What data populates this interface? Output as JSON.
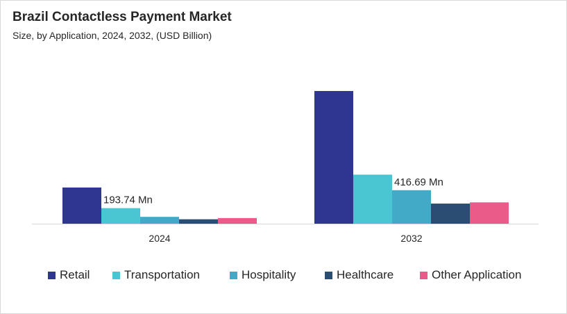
{
  "chart_data": {
    "type": "bar",
    "title": "Brazil Contactless Payment Market",
    "subtitle": "Size, by Application, 2024, 2032, (USD Billion)",
    "categories": [
      "2024",
      "2032"
    ],
    "series": [
      {
        "name": "Retail",
        "color": "#2e3692",
        "values": [
          0.45,
          1.65
        ]
      },
      {
        "name": "Transportation",
        "color": "#4ac6d2",
        "values": [
          0.1937,
          0.61
        ]
      },
      {
        "name": "Hospitality",
        "color": "#42a9c6",
        "values": [
          0.085,
          0.4167
        ]
      },
      {
        "name": "Healthcare",
        "color": "#2b4d74",
        "values": [
          0.055,
          0.25
        ]
      },
      {
        "name": "Other Application",
        "color": "#ea5b8a",
        "values": [
          0.07,
          0.265
        ]
      }
    ],
    "annotations": [
      {
        "category": "2024",
        "series": "Transportation",
        "text": "193.74 Mn"
      },
      {
        "category": "2032",
        "series": "Hospitality",
        "text": "416.69 Mn"
      }
    ],
    "xlabel": "",
    "ylabel": "",
    "ylim": [
      0,
      1.65
    ],
    "legend_position": "bottom",
    "grid": false
  }
}
